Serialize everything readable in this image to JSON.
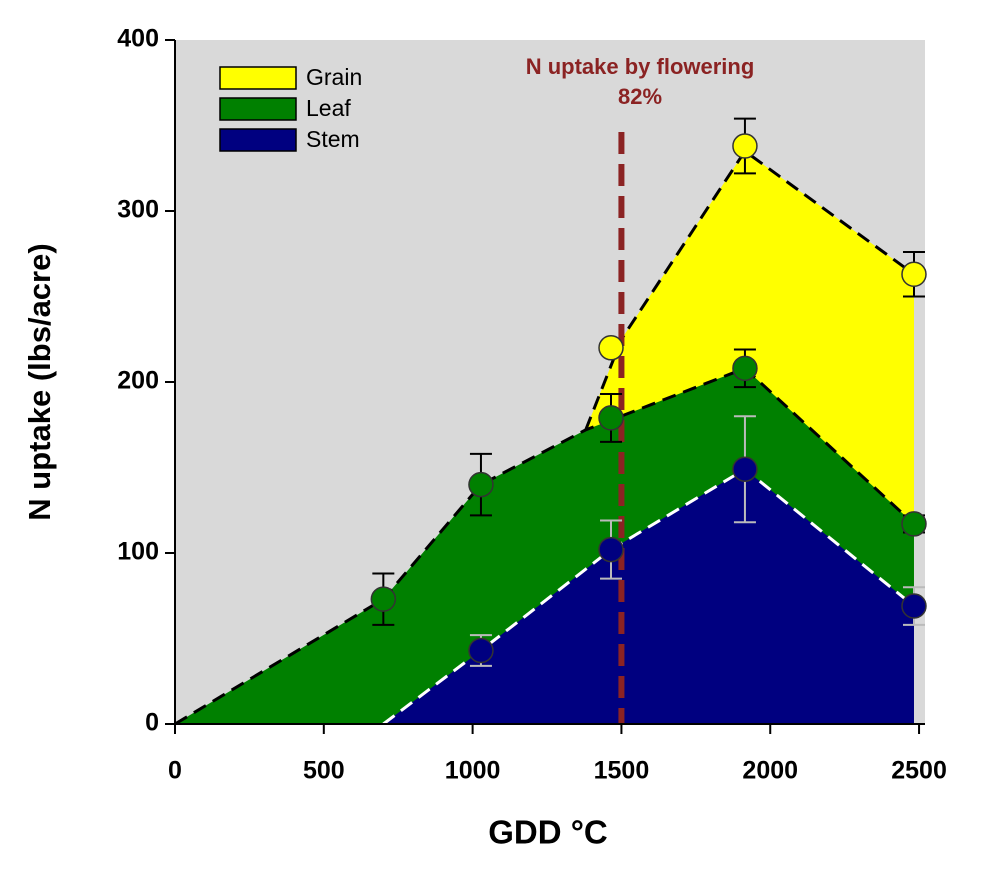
{
  "chart_data": {
    "type": "stacked-area",
    "xlabel": "GDD °C",
    "ylabel": "N uptake (lbs/acre)",
    "xlim": [
      0,
      2520
    ],
    "ylim": [
      0,
      400
    ],
    "xticks": [
      0,
      500,
      1000,
      1500,
      2000,
      2500
    ],
    "yticks": [
      0,
      100,
      200,
      300,
      400
    ],
    "legend": "upper left",
    "background": "#d9d9d9",
    "areas": [
      {
        "name": "Grain",
        "color": "#ffff00",
        "line_color": "#000000",
        "x": [
          1380,
          1500,
          1915,
          2483
        ],
        "values": [
          172,
          225,
          335,
          263
        ]
      },
      {
        "name": "Leaf",
        "color": "#008000",
        "line_color": "#000000",
        "x": [
          0,
          700,
          1028,
          1380,
          1915,
          2483
        ],
        "values": [
          0,
          73,
          140,
          172,
          208,
          117
        ]
      },
      {
        "name": "Stem",
        "color": "#000080",
        "line_color": "#ffffff",
        "x": [
          700,
          1028,
          1465,
          1915,
          2483
        ],
        "values": [
          0,
          43,
          102,
          149,
          69
        ]
      }
    ],
    "markers": [
      {
        "color": "#ffff00",
        "error_color": "#000000",
        "x": [
          1465,
          1915,
          2483
        ],
        "values": [
          220,
          338,
          263
        ],
        "errors": [
          0,
          16,
          13
        ]
      },
      {
        "color": "#008000",
        "error_color": "#000000",
        "x": [
          700,
          1028,
          1465,
          1915,
          2483
        ],
        "values": [
          73,
          140,
          179,
          208,
          117
        ],
        "errors": [
          15,
          18,
          14,
          11,
          5
        ]
      },
      {
        "color": "#000080",
        "error_color": "#bbbbbb",
        "x": [
          1028,
          1465,
          1915,
          2483
        ],
        "values": [
          43,
          102,
          149,
          69
        ],
        "errors": [
          9,
          17,
          31,
          11
        ]
      }
    ],
    "annotation": {
      "text": "N uptake by flowering",
      "value_text": "82%",
      "x": 1500,
      "color": "#8b2323"
    }
  }
}
